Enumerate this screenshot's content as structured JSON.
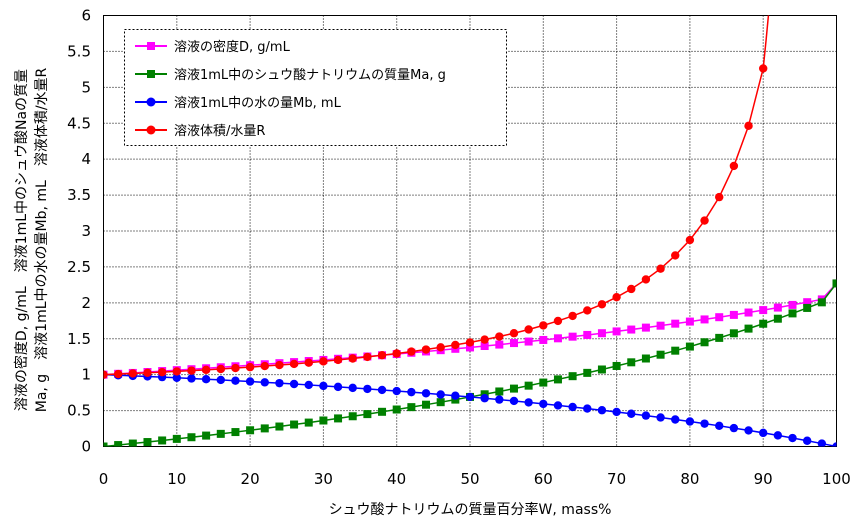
{
  "chart_data": {
    "type": "line",
    "title": "",
    "xlabel": "シュウ酸ナトリウムの質量百分率W, mass%",
    "ylabel_lines": [
      "溶液の密度D, g/mL　溶液1mL中のシュウ酸Naの質量",
      "Ma, g　溶液1mL中の水の量Mb, mL　溶液体積/水量R"
    ],
    "xlim": [
      0,
      100
    ],
    "ylim": [
      0,
      6
    ],
    "xticks": [
      0,
      10,
      20,
      30,
      40,
      50,
      60,
      70,
      80,
      90,
      100
    ],
    "yticks": [
      "0",
      "0.5",
      "1",
      "1.5",
      "2",
      "2.5",
      "3",
      "3.5",
      "4",
      "4.5",
      "5",
      "5.5",
      "6"
    ],
    "grid": true,
    "legend_position": "top-left",
    "series": [
      {
        "name": "溶液の密度D, g/mL",
        "color": "#ff00ff",
        "marker": "square",
        "x": [
          0,
          2,
          4,
          6,
          8,
          10,
          12,
          14,
          16,
          18,
          20,
          22,
          24,
          26,
          28,
          30,
          32,
          34,
          36,
          38,
          40,
          42,
          44,
          46,
          48,
          50,
          52,
          54,
          56,
          58,
          60,
          62,
          64,
          66,
          68,
          70,
          72,
          74,
          76,
          78,
          80,
          82,
          84,
          86,
          88,
          90,
          92,
          94,
          96,
          98,
          100
        ],
        "y": [
          1.0,
          1.012,
          1.024,
          1.037,
          1.05,
          1.063,
          1.076,
          1.089,
          1.103,
          1.117,
          1.131,
          1.145,
          1.16,
          1.175,
          1.19,
          1.205,
          1.221,
          1.237,
          1.253,
          1.27,
          1.287,
          1.305,
          1.323,
          1.341,
          1.36,
          1.379,
          1.399,
          1.419,
          1.44,
          1.461,
          1.483,
          1.506,
          1.529,
          1.553,
          1.577,
          1.602,
          1.628,
          1.655,
          1.682,
          1.71,
          1.739,
          1.769,
          1.8,
          1.832,
          1.865,
          1.899,
          1.934,
          1.971,
          2.009,
          2.048,
          2.27
        ]
      },
      {
        "name": "溶液1mL中のシュウ酸ナトリウムの質量Ma, g",
        "color": "#008000",
        "marker": "square",
        "x": [
          0,
          2,
          4,
          6,
          8,
          10,
          12,
          14,
          16,
          18,
          20,
          22,
          24,
          26,
          28,
          30,
          32,
          34,
          36,
          38,
          40,
          42,
          44,
          46,
          48,
          50,
          52,
          54,
          56,
          58,
          60,
          62,
          64,
          66,
          68,
          70,
          72,
          74,
          76,
          78,
          80,
          82,
          84,
          86,
          88,
          90,
          92,
          94,
          96,
          98,
          100
        ],
        "y": [
          0.0,
          0.02,
          0.041,
          0.062,
          0.084,
          0.106,
          0.129,
          0.152,
          0.176,
          0.201,
          0.226,
          0.252,
          0.278,
          0.306,
          0.333,
          0.362,
          0.391,
          0.421,
          0.451,
          0.483,
          0.515,
          0.548,
          0.582,
          0.617,
          0.653,
          0.69,
          0.727,
          0.766,
          0.806,
          0.847,
          0.89,
          0.934,
          0.979,
          1.025,
          1.072,
          1.121,
          1.172,
          1.225,
          1.278,
          1.334,
          1.391,
          1.451,
          1.512,
          1.576,
          1.641,
          1.709,
          1.779,
          1.853,
          1.929,
          2.007,
          2.27
        ]
      },
      {
        "name": "溶液1mL中の水の量Mb, mL",
        "color": "#0000ff",
        "marker": "circle",
        "x": [
          0,
          2,
          4,
          6,
          8,
          10,
          12,
          14,
          16,
          18,
          20,
          22,
          24,
          26,
          28,
          30,
          32,
          34,
          36,
          38,
          40,
          42,
          44,
          46,
          48,
          50,
          52,
          54,
          56,
          58,
          60,
          62,
          64,
          66,
          68,
          70,
          72,
          74,
          76,
          78,
          80,
          82,
          84,
          86,
          88,
          90,
          92,
          94,
          96,
          98,
          100
        ],
        "y": [
          1.0,
          0.992,
          0.983,
          0.975,
          0.966,
          0.957,
          0.947,
          0.937,
          0.927,
          0.916,
          0.905,
          0.893,
          0.882,
          0.87,
          0.857,
          0.844,
          0.83,
          0.816,
          0.802,
          0.787,
          0.772,
          0.757,
          0.741,
          0.724,
          0.707,
          0.69,
          0.672,
          0.653,
          0.634,
          0.614,
          0.593,
          0.572,
          0.55,
          0.528,
          0.505,
          0.481,
          0.456,
          0.43,
          0.404,
          0.376,
          0.348,
          0.318,
          0.288,
          0.256,
          0.224,
          0.19,
          0.155,
          0.118,
          0.08,
          0.041,
          0.0
        ]
      },
      {
        "name": "溶液体積/水量R",
        "color": "#ff0000",
        "marker": "circle",
        "x": [
          0,
          2,
          4,
          6,
          8,
          10,
          12,
          14,
          16,
          18,
          20,
          22,
          24,
          26,
          28,
          30,
          32,
          34,
          36,
          38,
          40,
          42,
          44,
          46,
          48,
          50,
          52,
          54,
          56,
          58,
          60,
          62,
          64,
          66,
          68,
          70,
          72,
          74,
          76,
          78,
          80,
          82,
          84,
          86,
          88,
          90
        ],
        "y": [
          1.0,
          1.008,
          1.017,
          1.026,
          1.035,
          1.045,
          1.056,
          1.067,
          1.079,
          1.092,
          1.105,
          1.12,
          1.134,
          1.149,
          1.167,
          1.185,
          1.205,
          1.225,
          1.247,
          1.271,
          1.295,
          1.321,
          1.35,
          1.381,
          1.414,
          1.449,
          1.488,
          1.531,
          1.577,
          1.629,
          1.686,
          1.748,
          1.818,
          1.894,
          1.98,
          2.079,
          2.193,
          2.326,
          2.475,
          2.66,
          2.874,
          3.145,
          3.472,
          3.906,
          4.464,
          5.263
        ]
      }
    ]
  }
}
